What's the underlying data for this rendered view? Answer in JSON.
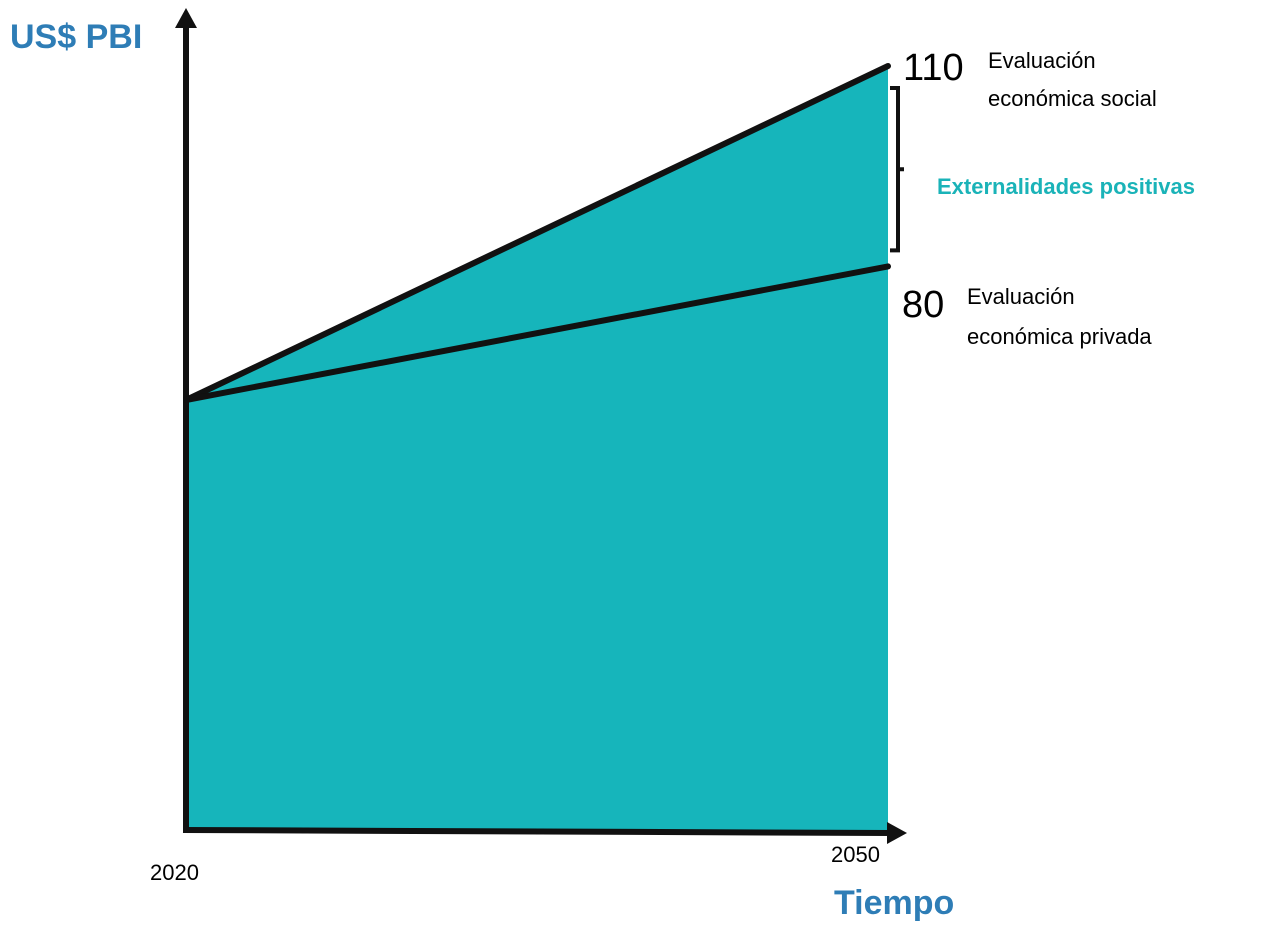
{
  "chart_data": {
    "type": "area",
    "ylabel": "US$ PBI",
    "xlabel": "Tiempo",
    "x": [
      2020,
      2050
    ],
    "x_tick_labels": [
      "2020",
      "2050"
    ],
    "series": [
      {
        "name": "Evaluación económica privada",
        "label_lines": [
          "Evaluación",
          "económica privada"
        ],
        "end_label": "80",
        "values": [
          60,
          80
        ]
      },
      {
        "name": "Evaluación económica social",
        "label_lines": [
          "Evaluación",
          "económica social"
        ],
        "end_label": "110",
        "values": [
          60,
          110
        ]
      }
    ],
    "annotation": {
      "text": "Externalidades positivas",
      "from": 80,
      "to": 110
    },
    "grid": false,
    "colors": {
      "fill": "#16b5bb",
      "line": "#111111",
      "axis_title": "#2e7db6",
      "annotation": "#1ab3b8"
    }
  }
}
